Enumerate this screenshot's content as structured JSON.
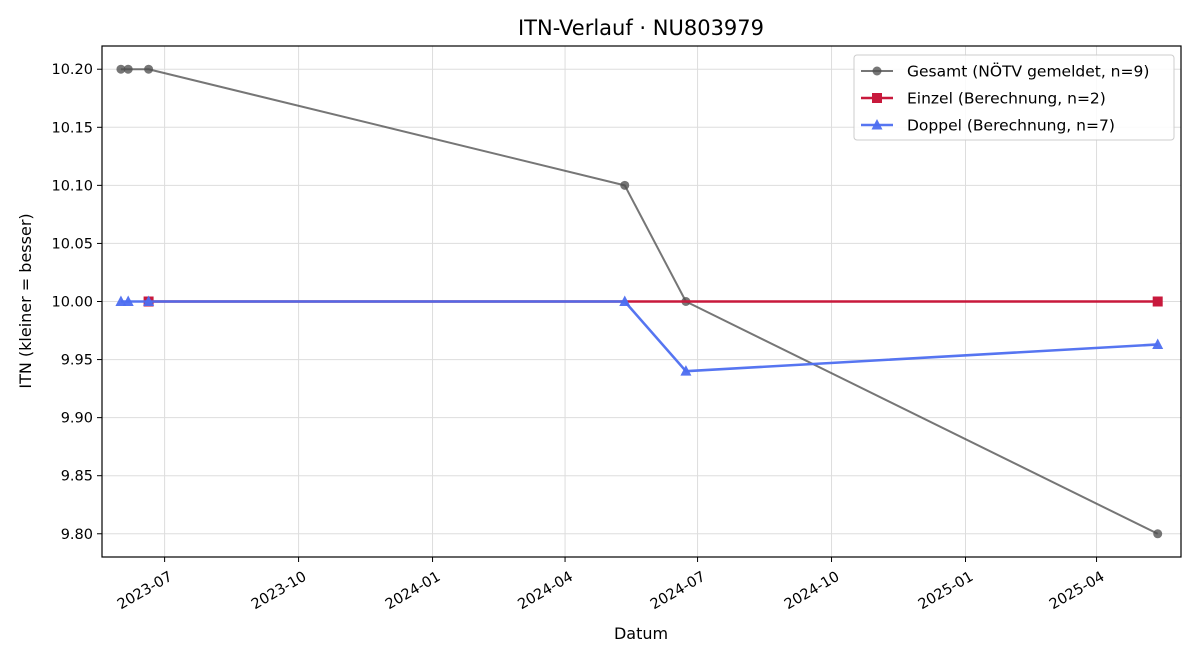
{
  "chart_data": {
    "type": "line",
    "title": "ITN-Verlauf · NU803979",
    "xlabel": "Datum",
    "ylabel": "ITN  (kleiner = besser)",
    "x_ticks": [
      "2023-07",
      "2023-10",
      "2024-01",
      "2024-04",
      "2024-07",
      "2024-10",
      "2025-01",
      "2025-04"
    ],
    "y_ticks": [
      "10.20",
      "10.15",
      "10.10",
      "10.05",
      "10.00",
      "9.95",
      "9.90",
      "9.85",
      "9.80"
    ],
    "ylim": [
      9.78,
      10.22
    ],
    "xlim": [
      "2023-05-19",
      "2025-05-29"
    ],
    "grid": true,
    "legend_position": "top-right",
    "series": [
      {
        "name": "Gesamt (NÖTV gemeldet, n=9)",
        "color": "#505050",
        "marker": "circle",
        "points": [
          {
            "x": "2023-06-01",
            "y": 10.2
          },
          {
            "x": "2023-06-06",
            "y": 10.2
          },
          {
            "x": "2023-06-20",
            "y": 10.2
          },
          {
            "x": "2024-05-12",
            "y": 10.1
          },
          {
            "x": "2024-06-23",
            "y": 10.0
          },
          {
            "x": "2025-05-13",
            "y": 9.8
          }
        ]
      },
      {
        "name": "Einzel (Berechnung, n=2)",
        "color": "#c8193c",
        "marker": "square",
        "points": [
          {
            "x": "2023-06-20",
            "y": 10.0
          },
          {
            "x": "2025-05-13",
            "y": 10.0
          }
        ]
      },
      {
        "name": "Doppel (Berechnung, n=7)",
        "color": "#4d6ef0",
        "marker": "triangle",
        "points": [
          {
            "x": "2023-06-01",
            "y": 10.0
          },
          {
            "x": "2023-06-06",
            "y": 10.0
          },
          {
            "x": "2023-06-20",
            "y": 10.0
          },
          {
            "x": "2024-05-12",
            "y": 10.0
          },
          {
            "x": "2024-06-23",
            "y": 9.94
          },
          {
            "x": "2025-05-13",
            "y": 9.963
          }
        ]
      }
    ]
  }
}
